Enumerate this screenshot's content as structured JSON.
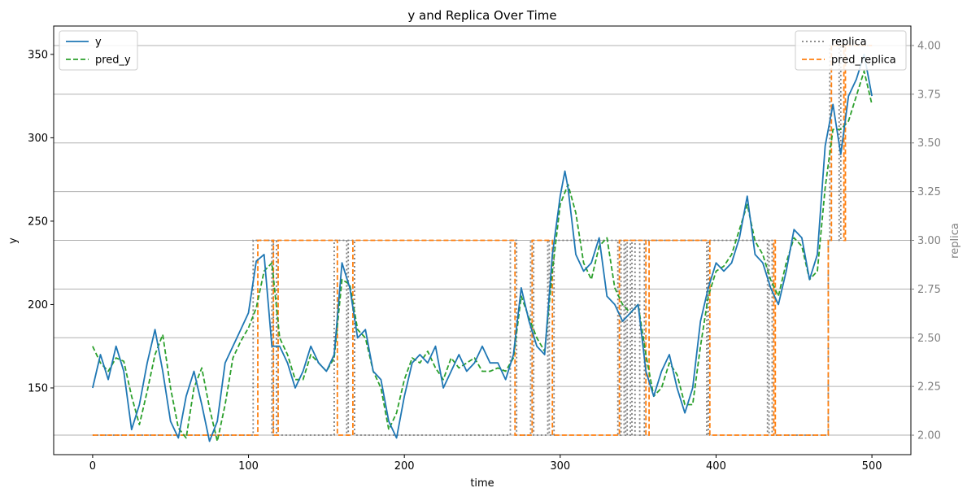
{
  "chart_data": {
    "type": "line",
    "title": "y and Replica Over Time",
    "xlabel": "time",
    "ylabel": "y",
    "y2label": "replica",
    "xlim": [
      -25,
      525
    ],
    "ylim": [
      110,
      367
    ],
    "y2lim": [
      1.9,
      4.1
    ],
    "xticks": [
      0,
      100,
      200,
      300,
      400,
      500
    ],
    "yticks": [
      150,
      200,
      250,
      300,
      350
    ],
    "y2ticks": [
      2.0,
      2.25,
      2.5,
      2.75,
      3.0,
      3.25,
      3.5,
      3.75,
      4.0
    ],
    "y2ticklabels": [
      "2.00",
      "2.25",
      "2.50",
      "2.75",
      "3.00",
      "3.25",
      "3.50",
      "3.75",
      "4.00"
    ],
    "grid": "horizontal lines at right-axis ticks",
    "legend_left": {
      "placement": "top-left",
      "entries": [
        "y",
        "pred_y"
      ]
    },
    "legend_right": {
      "placement": "top-right",
      "entries": [
        "replica",
        "pred_replica"
      ]
    },
    "colors": {
      "y": "#1f77b4",
      "pred_y": "#2ca02c",
      "replica": "#7f7f7f",
      "pred_replica": "#ff7f0e",
      "y2_axis": "#808080"
    },
    "y_series": {
      "name": "y",
      "x": [
        0,
        5,
        10,
        15,
        20,
        25,
        30,
        35,
        40,
        45,
        50,
        55,
        60,
        65,
        70,
        75,
        80,
        85,
        90,
        95,
        100,
        105,
        110,
        115,
        120,
        125,
        130,
        135,
        140,
        145,
        150,
        155,
        160,
        165,
        170,
        175,
        180,
        185,
        190,
        195,
        200,
        205,
        210,
        215,
        220,
        225,
        230,
        235,
        240,
        245,
        250,
        255,
        260,
        265,
        270,
        275,
        280,
        285,
        290,
        295,
        300,
        303,
        305,
        310,
        315,
        320,
        325,
        330,
        335,
        340,
        345,
        350,
        355,
        360,
        365,
        370,
        375,
        380,
        385,
        390,
        395,
        400,
        405,
        410,
        415,
        420,
        425,
        430,
        435,
        440,
        445,
        450,
        455,
        460,
        465,
        470,
        475,
        480,
        485,
        490,
        495,
        500
      ],
      "values": [
        150,
        170,
        155,
        175,
        160,
        125,
        140,
        165,
        185,
        160,
        130,
        120,
        145,
        160,
        140,
        118,
        130,
        165,
        175,
        185,
        195,
        226,
        230,
        175,
        175,
        165,
        150,
        160,
        175,
        165,
        160,
        170,
        225,
        210,
        180,
        185,
        160,
        155,
        130,
        120,
        145,
        165,
        170,
        165,
        175,
        150,
        160,
        170,
        160,
        165,
        175,
        165,
        165,
        155,
        170,
        210,
        190,
        175,
        170,
        230,
        265,
        280,
        270,
        230,
        220,
        225,
        240,
        205,
        200,
        190,
        195,
        200,
        160,
        145,
        160,
        170,
        150,
        135,
        150,
        190,
        210,
        225,
        220,
        225,
        240,
        265,
        230,
        225,
        210,
        200,
        220,
        245,
        240,
        215,
        230,
        295,
        320,
        290,
        325,
        335,
        350,
        325
      ]
    },
    "pred_y_series": {
      "name": "pred_y",
      "x": [
        0,
        5,
        10,
        15,
        20,
        25,
        30,
        35,
        40,
        45,
        50,
        55,
        60,
        65,
        70,
        75,
        80,
        85,
        90,
        95,
        100,
        105,
        110,
        115,
        120,
        125,
        130,
        135,
        140,
        145,
        150,
        155,
        160,
        165,
        170,
        175,
        180,
        185,
        190,
        195,
        200,
        205,
        210,
        215,
        220,
        225,
        230,
        235,
        240,
        245,
        250,
        255,
        260,
        265,
        270,
        275,
        280,
        285,
        290,
        295,
        300,
        305,
        310,
        315,
        320,
        325,
        330,
        335,
        340,
        345,
        350,
        355,
        360,
        365,
        370,
        375,
        380,
        385,
        390,
        395,
        400,
        405,
        410,
        415,
        420,
        425,
        430,
        435,
        440,
        445,
        450,
        455,
        460,
        465,
        470,
        475,
        480,
        485,
        490,
        495,
        500
      ],
      "values": [
        175,
        165,
        160,
        168,
        166,
        145,
        128,
        148,
        170,
        182,
        150,
        126,
        120,
        150,
        162,
        138,
        118,
        140,
        168,
        178,
        186,
        198,
        220,
        225,
        180,
        170,
        155,
        155,
        170,
        165,
        160,
        168,
        215,
        212,
        185,
        180,
        160,
        150,
        125,
        135,
        155,
        168,
        165,
        172,
        162,
        155,
        168,
        162,
        165,
        168,
        160,
        160,
        162,
        160,
        168,
        205,
        192,
        180,
        172,
        220,
        260,
        272,
        255,
        225,
        215,
        235,
        240,
        210,
        200,
        195,
        200,
        170,
        145,
        150,
        165,
        158,
        140,
        140,
        175,
        205,
        220,
        223,
        230,
        245,
        260,
        238,
        230,
        215,
        205,
        225,
        240,
        235,
        215,
        220,
        270,
        305,
        305,
        310,
        325,
        340,
        320
      ]
    },
    "replica_series": {
      "name": "replica",
      "step": "post",
      "x": [
        0,
        103,
        115,
        116,
        118,
        155,
        163,
        164,
        168,
        268,
        272,
        281,
        283,
        292,
        293,
        296,
        337,
        339,
        341,
        342,
        343,
        345,
        346,
        348,
        351,
        354,
        394,
        395,
        433,
        434,
        436,
        472,
        473,
        479,
        480,
        500
      ],
      "values": [
        2,
        3,
        2,
        3,
        2,
        3,
        2,
        3,
        2,
        3,
        2,
        3,
        2,
        3,
        2,
        3,
        2,
        3,
        2,
        3,
        2,
        3,
        2,
        3,
        2,
        3,
        2,
        3,
        2,
        3,
        2,
        3,
        4,
        3,
        4,
        4
      ]
    },
    "pred_replica_series": {
      "name": "pred_replica",
      "step": "post",
      "x": [
        0,
        106,
        116,
        119,
        157,
        167,
        271,
        282,
        295,
        338,
        355,
        357,
        396,
        437,
        438,
        472,
        474,
        482,
        483,
        500
      ],
      "values": [
        2,
        3,
        2,
        3,
        2,
        3,
        2,
        3,
        2,
        3,
        2,
        3,
        2,
        3,
        2,
        3,
        4,
        3,
        4,
        4
      ]
    }
  }
}
